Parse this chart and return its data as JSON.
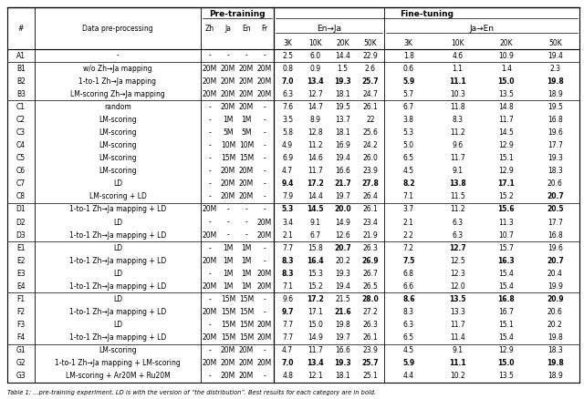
{
  "rows": [
    {
      "group": "A",
      "id": "A1",
      "desc": "-",
      "zh": "-",
      "ja": "-",
      "en": "-",
      "fr": "-",
      "vals": [
        "2.5",
        "6.0",
        "14.4",
        "22.9",
        "1.8",
        "4.6",
        "10.9",
        "19.4"
      ],
      "bold": [
        false,
        false,
        false,
        false,
        false,
        false,
        false,
        false
      ]
    },
    {
      "group": "B",
      "id": "B1",
      "desc": "w/o Zh→Ja mapping",
      "zh": "20M",
      "ja": "20M",
      "en": "20M",
      "fr": "20M",
      "vals": [
        "0.8",
        "0.9",
        "1.5",
        "2.6",
        "0.6",
        "1.1",
        "1.4",
        "2.3"
      ],
      "bold": [
        false,
        false,
        false,
        false,
        false,
        false,
        false,
        false
      ]
    },
    {
      "group": "B",
      "id": "B2",
      "desc": "1-to-1 Zh→Ja mapping",
      "zh": "20M",
      "ja": "20M",
      "en": "20M",
      "fr": "20M",
      "vals": [
        "7.0",
        "13.4",
        "19.3",
        "25.7",
        "5.9",
        "11.1",
        "15.0",
        "19.8"
      ],
      "bold": [
        true,
        true,
        true,
        true,
        true,
        true,
        true,
        true
      ]
    },
    {
      "group": "B",
      "id": "B3",
      "desc": "LM-scoring Zh→Ja mapping",
      "zh": "20M",
      "ja": "20M",
      "en": "20M",
      "fr": "20M",
      "vals": [
        "6.3",
        "12.7",
        "18.1",
        "24.7",
        "5.7",
        "10.3",
        "13.5",
        "18.9"
      ],
      "bold": [
        false,
        false,
        false,
        false,
        false,
        false,
        false,
        false
      ]
    },
    {
      "group": "C",
      "id": "C1",
      "desc": "random",
      "zh": "-",
      "ja": "20M",
      "en": "20M",
      "fr": "-",
      "vals": [
        "7.6",
        "14.7",
        "19.5",
        "26.1",
        "6.7",
        "11.8",
        "14.8",
        "19.5"
      ],
      "bold": [
        false,
        false,
        false,
        false,
        false,
        false,
        false,
        false
      ]
    },
    {
      "group": "C",
      "id": "C2",
      "desc": "LM-scoring",
      "zh": "-",
      "ja": "1M",
      "en": "1M",
      "fr": "-",
      "vals": [
        "3.5",
        "8.9",
        "13.7",
        "22",
        "3.8",
        "8.3",
        "11.7",
        "16.8"
      ],
      "bold": [
        false,
        false,
        false,
        false,
        false,
        false,
        false,
        false
      ]
    },
    {
      "group": "C",
      "id": "C3",
      "desc": "LM-scoring",
      "zh": "-",
      "ja": "5M",
      "en": "5M",
      "fr": "-",
      "vals": [
        "5.8",
        "12.8",
        "18.1",
        "25.6",
        "5.3",
        "11.2",
        "14.5",
        "19.6"
      ],
      "bold": [
        false,
        false,
        false,
        false,
        false,
        false,
        false,
        false
      ]
    },
    {
      "group": "C",
      "id": "C4",
      "desc": "LM-scoring",
      "zh": "-",
      "ja": "10M",
      "en": "10M",
      "fr": "-",
      "vals": [
        "4.9",
        "11.2",
        "16.9",
        "24.2",
        "5.0",
        "9.6",
        "12.9",
        "17.7"
      ],
      "bold": [
        false,
        false,
        false,
        false,
        false,
        false,
        false,
        false
      ]
    },
    {
      "group": "C",
      "id": "C5",
      "desc": "LM-scoring",
      "zh": "-",
      "ja": "15M",
      "en": "15M",
      "fr": "-",
      "vals": [
        "6.9",
        "14.6",
        "19.4",
        "26.0",
        "6.5",
        "11.7",
        "15.1",
        "19.3"
      ],
      "bold": [
        false,
        false,
        false,
        false,
        false,
        false,
        false,
        false
      ]
    },
    {
      "group": "C",
      "id": "C6",
      "desc": "LM-scoring",
      "zh": "-",
      "ja": "20M",
      "en": "20M",
      "fr": "-",
      "vals": [
        "4.7",
        "11.7",
        "16.6",
        "23.9",
        "4.5",
        "9.1",
        "12.9",
        "18.3"
      ],
      "bold": [
        false,
        false,
        false,
        false,
        false,
        false,
        false,
        false
      ]
    },
    {
      "group": "C",
      "id": "C7",
      "desc": "LD",
      "zh": "-",
      "ja": "20M",
      "en": "20M",
      "fr": "-",
      "vals": [
        "9.4",
        "17.2",
        "21.7",
        "27.8",
        "8.2",
        "13.8",
        "17.1",
        "20.6"
      ],
      "bold": [
        true,
        true,
        true,
        true,
        true,
        true,
        true,
        false
      ]
    },
    {
      "group": "C",
      "id": "C8",
      "desc": "LM-scoring + LD",
      "zh": "-",
      "ja": "20M",
      "en": "20M",
      "fr": "-",
      "vals": [
        "7.9",
        "14.4",
        "19.7",
        "26.4",
        "7.1",
        "11.5",
        "15.2",
        "20.7"
      ],
      "bold": [
        false,
        false,
        false,
        false,
        false,
        false,
        false,
        true
      ]
    },
    {
      "group": "D",
      "id": "D1",
      "desc": "1-to-1 Zh→Ja mapping + LD",
      "zh": "20M",
      "ja": "-",
      "en": "-",
      "fr": "-",
      "vals": [
        "5.3",
        "14.5",
        "20.0",
        "26.1",
        "3.7",
        "11.2",
        "15.6",
        "20.5"
      ],
      "bold": [
        true,
        true,
        true,
        false,
        false,
        false,
        true,
        true
      ]
    },
    {
      "group": "D",
      "id": "D2",
      "desc": "LD",
      "zh": "-",
      "ja": "-",
      "en": "-",
      "fr": "20M",
      "vals": [
        "3.4",
        "9.1",
        "14.9",
        "23.4",
        "2.1",
        "6.3",
        "11.3",
        "17.7"
      ],
      "bold": [
        false,
        false,
        false,
        false,
        false,
        false,
        false,
        false
      ]
    },
    {
      "group": "D",
      "id": "D3",
      "desc": "1-to-1 Zh→Ja mapping + LD",
      "zh": "20M",
      "ja": "-",
      "en": "-",
      "fr": "20M",
      "vals": [
        "2.1",
        "6.7",
        "12.6",
        "21.9",
        "2.2",
        "6.3",
        "10.7",
        "16.8"
      ],
      "bold": [
        false,
        false,
        false,
        false,
        false,
        false,
        false,
        false
      ]
    },
    {
      "group": "E",
      "id": "E1",
      "desc": "LD",
      "zh": "-",
      "ja": "1M",
      "en": "1M",
      "fr": "-",
      "vals": [
        "7.7",
        "15.8",
        "20.7",
        "26.3",
        "7.2",
        "12.7",
        "15.7",
        "19.6"
      ],
      "bold": [
        false,
        false,
        true,
        false,
        false,
        true,
        false,
        false
      ]
    },
    {
      "group": "E",
      "id": "E2",
      "desc": "1-to-1 Zh→Ja mapping + LD",
      "zh": "20M",
      "ja": "1M",
      "en": "1M",
      "fr": "-",
      "vals": [
        "8.3",
        "16.4",
        "20.2",
        "26.9",
        "7.5",
        "12.5",
        "16.3",
        "20.7"
      ],
      "bold": [
        true,
        true,
        false,
        true,
        true,
        false,
        true,
        true
      ]
    },
    {
      "group": "E",
      "id": "E3",
      "desc": "LD",
      "zh": "-",
      "ja": "1M",
      "en": "1M",
      "fr": "20M",
      "vals": [
        "8.3",
        "15.3",
        "19.3",
        "26.7",
        "6.8",
        "12.3",
        "15.4",
        "20.4"
      ],
      "bold": [
        true,
        false,
        false,
        false,
        false,
        false,
        false,
        false
      ]
    },
    {
      "group": "E",
      "id": "E4",
      "desc": "1-to-1 Zh→Ja mapping + LD",
      "zh": "20M",
      "ja": "1M",
      "en": "1M",
      "fr": "20M",
      "vals": [
        "7.1",
        "15.2",
        "19.4",
        "26.5",
        "6.6",
        "12.0",
        "15.4",
        "19.9"
      ],
      "bold": [
        false,
        false,
        false,
        false,
        false,
        false,
        false,
        false
      ]
    },
    {
      "group": "F",
      "id": "F1",
      "desc": "LD",
      "zh": "-",
      "ja": "15M",
      "en": "15M",
      "fr": "-",
      "vals": [
        "9.6",
        "17.2",
        "21.5",
        "28.0",
        "8.6",
        "13.5",
        "16.8",
        "20.9"
      ],
      "bold": [
        false,
        true,
        false,
        true,
        true,
        true,
        true,
        true
      ]
    },
    {
      "group": "F",
      "id": "F2",
      "desc": "1-to-1 Zh→Ja mapping + LD",
      "zh": "20M",
      "ja": "15M",
      "en": "15M",
      "fr": "-",
      "vals": [
        "9.7",
        "17.1",
        "21.6",
        "27.2",
        "8.3",
        "13.3",
        "16.7",
        "20.6"
      ],
      "bold": [
        true,
        false,
        true,
        false,
        false,
        false,
        false,
        false
      ]
    },
    {
      "group": "F",
      "id": "F3",
      "desc": "LD",
      "zh": "-",
      "ja": "15M",
      "en": "15M",
      "fr": "20M",
      "vals": [
        "7.7",
        "15.0",
        "19.8",
        "26.3",
        "6.3",
        "11.7",
        "15.1",
        "20.2"
      ],
      "bold": [
        false,
        false,
        false,
        false,
        false,
        false,
        false,
        false
      ]
    },
    {
      "group": "F",
      "id": "F4",
      "desc": "1-to-1 Zh→Ja mapping + LD",
      "zh": "20M",
      "ja": "15M",
      "en": "15M",
      "fr": "20M",
      "vals": [
        "7.7",
        "14.9",
        "19.7",
        "26.1",
        "6.5",
        "11.4",
        "15.4",
        "19.8"
      ],
      "bold": [
        false,
        false,
        false,
        false,
        false,
        false,
        false,
        false
      ]
    },
    {
      "group": "G",
      "id": "G1",
      "desc": "LM-scoring",
      "zh": "-",
      "ja": "20M",
      "en": "20M",
      "fr": "-",
      "vals": [
        "4.7",
        "11.7",
        "16.6",
        "23.9",
        "4.5",
        "9.1",
        "12.9",
        "18.3"
      ],
      "bold": [
        false,
        false,
        false,
        false,
        false,
        false,
        false,
        false
      ]
    },
    {
      "group": "G",
      "id": "G2",
      "desc": "1-to-1 Zh→Ja mapping + LM-scoring",
      "zh": "20M",
      "ja": "20M",
      "en": "20M",
      "fr": "20M",
      "vals": [
        "7.0",
        "13.4",
        "19.3",
        "25.7",
        "5.9",
        "11.1",
        "15.0",
        "19.8"
      ],
      "bold": [
        true,
        true,
        true,
        true,
        true,
        true,
        true,
        true
      ]
    },
    {
      "group": "G",
      "id": "G3",
      "desc": "LM-scoring + Ar20M + Ru20M",
      "zh": "-",
      "ja": "20M",
      "en": "20M",
      "fr": "-",
      "vals": [
        "4.8",
        "12.1",
        "18.1",
        "25.1",
        "4.4",
        "10.2",
        "13.5",
        "18.9"
      ],
      "bold": [
        false,
        false,
        false,
        false,
        false,
        false,
        false,
        false
      ]
    }
  ],
  "footnote": "Table 1: ...pre-training experiment. LD is with the version of “the distribution”. Best results for each category are in bold.",
  "fs_title": 6.5,
  "fs_data": 5.5,
  "fs_footnote": 4.8,
  "bg_color": "#ffffff",
  "line_color": "#000000"
}
